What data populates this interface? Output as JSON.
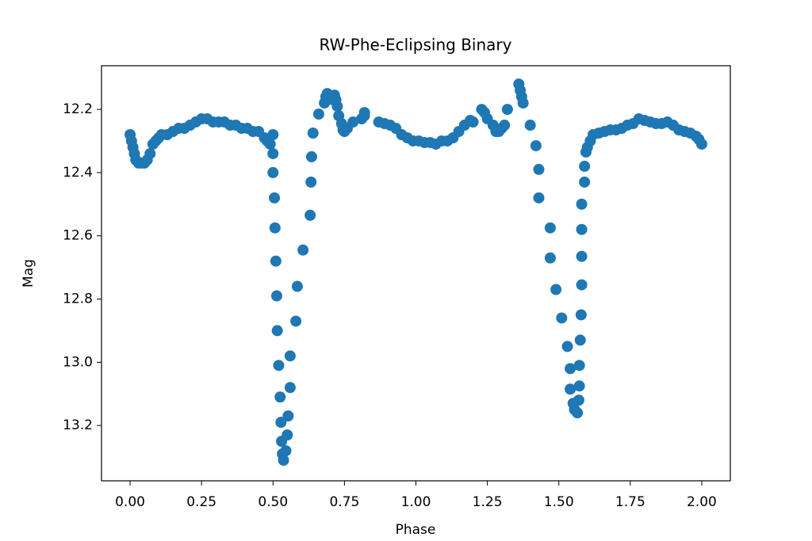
{
  "chart_data": {
    "type": "scatter",
    "title": "RW-Phe-Eclipsing Binary",
    "x_label": "Phase",
    "y_label": "Mag",
    "color": "#1f77b4",
    "grid": false,
    "inverted_y": true,
    "xlim": [
      -0.1,
      2.1
    ],
    "ylim": [
      13.375,
      12.062
    ],
    "xticks": [
      {
        "value": 0,
        "label": "0.00"
      },
      {
        "value": 0.25,
        "label": "0.25"
      },
      {
        "value": 0.5,
        "label": "0.50"
      },
      {
        "value": 0.75,
        "label": "0.75"
      },
      {
        "value": 1,
        "label": "1.00"
      },
      {
        "value": 1.25,
        "label": "1.25"
      },
      {
        "value": 1.5,
        "label": "1.50"
      },
      {
        "value": 1.75,
        "label": "1.75"
      },
      {
        "value": 2,
        "label": "2.00"
      }
    ],
    "yticks": [
      12.2,
      12.4,
      12.6,
      12.8,
      {
        "value": 13,
        "label": "13.0"
      },
      13.2
    ],
    "x": [
      0.0,
      0.005,
      0.01,
      0.015,
      0.02,
      0.03,
      0.04,
      0.05,
      0.06,
      0.07,
      0.08,
      0.09,
      0.1,
      0.11,
      0.13,
      0.15,
      0.17,
      0.19,
      0.21,
      0.23,
      0.25,
      0.27,
      0.29,
      0.31,
      0.33,
      0.35,
      0.37,
      0.39,
      0.41,
      0.43,
      0.45,
      0.47,
      0.48,
      0.49,
      0.5,
      0.5,
      0.5,
      0.505,
      0.507,
      0.51,
      0.513,
      0.515,
      0.52,
      0.525,
      0.528,
      0.53,
      0.533,
      0.537,
      0.545,
      0.55,
      0.553,
      0.56,
      0.56,
      0.58,
      0.585,
      0.605,
      0.63,
      0.633,
      0.635,
      0.64,
      0.66,
      0.68,
      0.685,
      0.69,
      0.71,
      0.715,
      0.72,
      0.725,
      0.73,
      0.74,
      0.745,
      0.75,
      0.76,
      0.78,
      0.81,
      0.82,
      0.82,
      0.87,
      0.89,
      0.91,
      0.93,
      0.95,
      0.97,
      0.99,
      1.01,
      1.03,
      1.05,
      1.07,
      1.09,
      1.11,
      1.13,
      1.15,
      1.17,
      1.19,
      1.2,
      1.23,
      1.24,
      1.25,
      1.27,
      1.28,
      1.29,
      1.3,
      1.31,
      1.32,
      1.36,
      1.365,
      1.37,
      1.375,
      1.4,
      1.42,
      1.43,
      1.43,
      1.47,
      1.47,
      1.49,
      1.51,
      1.53,
      1.54,
      1.54,
      1.55,
      1.555,
      1.565,
      1.57,
      1.572,
      1.572,
      1.575,
      1.578,
      1.58,
      1.58,
      1.58,
      1.58,
      1.59,
      1.59,
      1.595,
      1.6,
      1.61,
      1.62,
      1.64,
      1.66,
      1.68,
      1.7,
      1.72,
      1.74,
      1.76,
      1.78,
      1.8,
      1.82,
      1.84,
      1.86,
      1.88,
      1.9,
      1.92,
      1.94,
      1.96,
      1.98,
      1.99,
      2.0
    ],
    "values": [
      12.28,
      12.3,
      12.32,
      12.34,
      12.36,
      12.37,
      12.37,
      12.37,
      12.36,
      12.34,
      12.31,
      12.3,
      12.29,
      12.28,
      12.28,
      12.27,
      12.26,
      12.26,
      12.25,
      12.24,
      12.23,
      12.23,
      12.24,
      12.24,
      12.24,
      12.25,
      12.25,
      12.26,
      12.26,
      12.27,
      12.27,
      12.29,
      12.3,
      12.31,
      12.28,
      12.34,
      12.4,
      12.48,
      12.575,
      12.68,
      12.79,
      12.9,
      13.01,
      13.11,
      13.19,
      13.25,
      13.29,
      13.31,
      13.28,
      13.23,
      13.17,
      13.08,
      12.98,
      12.87,
      12.76,
      12.645,
      12.535,
      12.43,
      12.35,
      12.275,
      12.215,
      12.18,
      12.16,
      12.15,
      12.17,
      12.155,
      12.17,
      12.19,
      12.22,
      12.245,
      12.265,
      12.27,
      12.26,
      12.24,
      12.23,
      12.21,
      12.22,
      12.24,
      12.245,
      12.25,
      12.26,
      12.28,
      12.29,
      12.3,
      12.3,
      12.305,
      12.305,
      12.31,
      12.3,
      12.3,
      12.29,
      12.27,
      12.25,
      12.235,
      12.24,
      12.2,
      12.21,
      12.23,
      12.25,
      12.27,
      12.27,
      12.26,
      12.25,
      12.2,
      12.12,
      12.14,
      12.16,
      12.18,
      12.25,
      12.315,
      12.39,
      12.48,
      12.575,
      12.67,
      12.77,
      12.86,
      12.95,
      13.02,
      13.085,
      13.13,
      13.15,
      13.16,
      13.12,
      13.075,
      13.01,
      12.93,
      12.85,
      12.755,
      12.665,
      12.58,
      12.5,
      12.43,
      12.38,
      12.335,
      12.32,
      12.3,
      12.28,
      12.275,
      12.27,
      12.265,
      12.265,
      12.26,
      12.25,
      12.245,
      12.23,
      12.235,
      12.24,
      12.245,
      12.245,
      12.24,
      12.25,
      12.265,
      12.27,
      12.275,
      12.285,
      12.295,
      12.31
    ]
  }
}
